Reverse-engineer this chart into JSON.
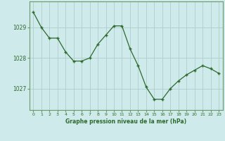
{
  "hours": [
    0,
    1,
    2,
    3,
    4,
    5,
    6,
    7,
    8,
    9,
    10,
    11,
    12,
    13,
    14,
    15,
    16,
    17,
    18,
    19,
    20,
    21,
    22,
    23
  ],
  "pressure": [
    1029.5,
    1029.0,
    1028.65,
    1028.65,
    1028.2,
    1027.9,
    1027.9,
    1028.0,
    1028.45,
    1028.75,
    1029.05,
    1029.05,
    1028.3,
    1027.75,
    1027.05,
    1026.65,
    1026.65,
    1027.0,
    1027.25,
    1027.45,
    1027.6,
    1027.75,
    1027.65,
    1027.5
  ],
  "line_color": "#2d6a2d",
  "marker_color": "#2d6a2d",
  "bg_color": "#ceeaea",
  "grid_color": "#b0cccc",
  "axis_label_color": "#2d6a2d",
  "tick_label_color": "#2d6a2d",
  "xlabel": "Graphe pression niveau de la mer (hPa)",
  "yticks": [
    1027,
    1028,
    1029
  ],
  "ylim": [
    1026.3,
    1029.85
  ],
  "xlim": [
    -0.5,
    23.5
  ]
}
